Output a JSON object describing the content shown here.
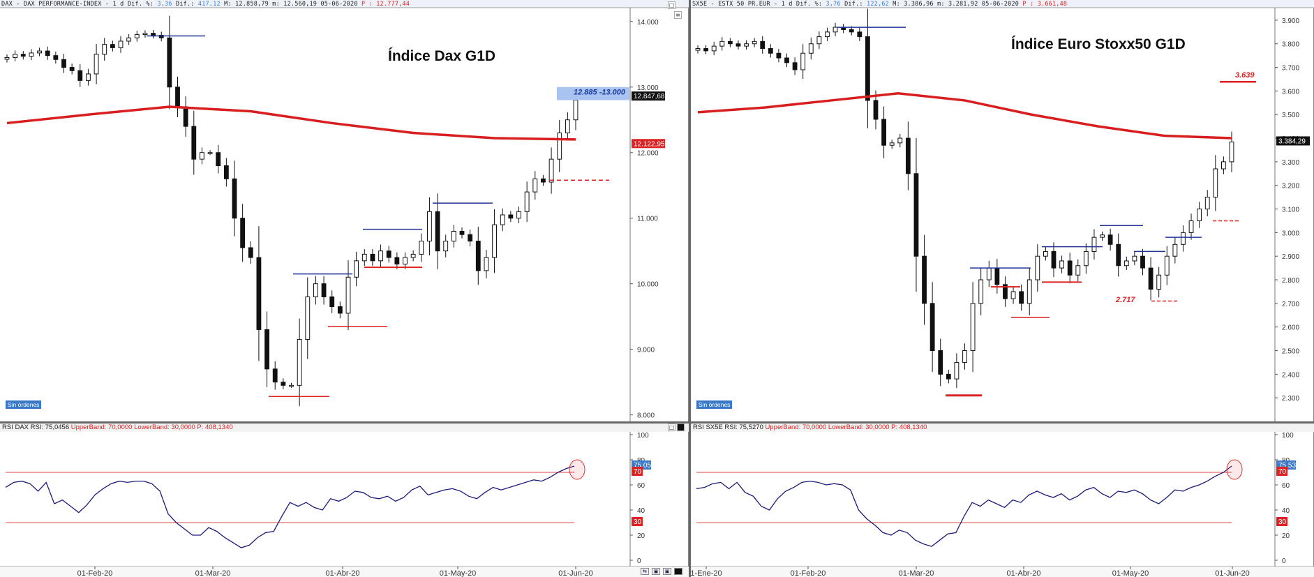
{
  "dax": {
    "header": {
      "symbol": "DAX - DAX PERFORMANCE-INDEX -",
      "interval": "1 d",
      "dif_pct_label": "Dif. %:",
      "dif_pct": "3,36",
      "dif_label": "Dif.:",
      "dif": "417,12",
      "max": "M: 12.858,79",
      "min": "m: 12.560,19",
      "date": "05-06-2020",
      "last": "P : 12.777,44"
    },
    "title": "Índice Dax G1D",
    "orders_badge": "Sin órdenes",
    "rsi_header": {
      "name": "RSI DAX RSI: 75,0456",
      "upper": "UpperBand: 70,0000",
      "lower": "LowerBand: 30,0000",
      "period": "P: 408,1340"
    },
    "price_labels": {
      "current": "12.847,68",
      "ma": "12.122,95",
      "target": "12.885 -13.000"
    },
    "rsi_labels": {
      "current": "75,05",
      "upper": "70",
      "lower": "30"
    }
  },
  "sx5e": {
    "header": {
      "symbol": "SX5E - ESTX 50 PR.EUR -",
      "interval": "1 d",
      "dif_pct_label": "Dif. %:",
      "dif_pct": "3,76",
      "dif_label": "Dif.:",
      "dif": "122,62",
      "max": "M: 3.386,96",
      "min": "m: 3.281,92",
      "date": "05-06-2020",
      "last": "P : 3.661,48"
    },
    "title": "Índice Euro Stoxx50 G1D",
    "orders_badge": "Sin órdenes",
    "rsi_header": {
      "name": "RSI SX5E RSI: 75,5270",
      "upper": "UpperBand: 70,0000",
      "lower": "LowerBand: 30,0000",
      "period": "P: 408,1340"
    },
    "price_labels": {
      "current": "3.384,29",
      "level_high": "3.639",
      "level_low": "2.717"
    },
    "rsi_labels": {
      "current": "75,53",
      "upper": "70",
      "lower": "30"
    }
  },
  "chart_data": [
    {
      "type": "candlestick",
      "title": "Índice Dax G1D",
      "ylim": [
        7900,
        14200
      ],
      "yticks": [
        "8.000",
        "9.000",
        "10.000",
        "11.000",
        "12.000",
        "13.000",
        "14.000"
      ],
      "xticks": [
        "01-Feb-20",
        "01-Mar-20",
        "01-Abr-20",
        "01-May-20",
        "01-Jun-20"
      ],
      "close_series": [
        13450,
        13500,
        13470,
        13520,
        13550,
        13480,
        13420,
        13300,
        13250,
        13100,
        13200,
        13500,
        13650,
        13600,
        13700,
        13750,
        13800,
        13820,
        13790,
        13750,
        13000,
        12700,
        12400,
        11900,
        12000,
        12000,
        11800,
        11600,
        11000,
        10550,
        10400,
        9300,
        8700,
        8500,
        8450,
        8450,
        9150,
        9800,
        10000,
        9800,
        9650,
        9550,
        10100,
        10350,
        10450,
        10350,
        10500,
        10400,
        10300,
        10400,
        10450,
        10650,
        11100,
        10500,
        10650,
        10800,
        10750,
        10650,
        10200,
        10400,
        10900,
        11050,
        11000,
        11100,
        11400,
        11600,
        11550,
        11900,
        12300,
        12500,
        12800
      ],
      "ma_series": [
        12450,
        12580,
        12700,
        12630,
        12450,
        12300,
        12220,
        12200
      ],
      "levels": [
        {
          "label": "12.885 -13.000",
          "value": 12940
        }
      ],
      "annotations": [
        "12.885 -13.000"
      ]
    },
    {
      "type": "line",
      "title": "RSI DAX",
      "ylim": [
        0,
        100
      ],
      "yticks": [
        "0",
        "20",
        "40",
        "60",
        "80",
        "100"
      ],
      "upper_band": 70,
      "lower_band": 30,
      "values": [
        58,
        62,
        63,
        61,
        55,
        62,
        45,
        48,
        43,
        38,
        44,
        52,
        57,
        61,
        63,
        62,
        63,
        63,
        61,
        55,
        37,
        30,
        25,
        20,
        20,
        26,
        23,
        18,
        14,
        10,
        12,
        18,
        22,
        23,
        35,
        46,
        43,
        46,
        42,
        40,
        49,
        47,
        50,
        55,
        54,
        50,
        49,
        51,
        47,
        50,
        56,
        59,
        52,
        54,
        56,
        57,
        55,
        51,
        49,
        54,
        58,
        56,
        58,
        60,
        62,
        64,
        63,
        66,
        70,
        73,
        75
      ]
    },
    {
      "type": "candlestick",
      "title": "Índice Euro Stoxx50 G1D",
      "ylim": [
        2200,
        3950
      ],
      "yticks": [
        "2.300",
        "2.400",
        "2.500",
        "2.600",
        "2.700",
        "2.800",
        "2.900",
        "3.000",
        "3.100",
        "3.200",
        "3.300",
        "3.400",
        "3.500",
        "3.600",
        "3.700",
        "3.800",
        "3.900"
      ],
      "xticks": [
        "1-Ene-20",
        "01-Feb-20",
        "01-Mar-20",
        "01-Abr-20",
        "01-May-20",
        "01-Jun-20"
      ],
      "close_series": [
        3780,
        3770,
        3790,
        3810,
        3800,
        3790,
        3800,
        3810,
        3780,
        3760,
        3740,
        3720,
        3690,
        3760,
        3800,
        3830,
        3850,
        3870,
        3860,
        3850,
        3830,
        3560,
        3480,
        3370,
        3380,
        3400,
        3250,
        2900,
        2700,
        2500,
        2400,
        2380,
        2450,
        2500,
        2700,
        2800,
        2850,
        2780,
        2720,
        2750,
        2700,
        2800,
        2900,
        2920,
        2850,
        2880,
        2820,
        2860,
        2920,
        2980,
        2990,
        2950,
        2860,
        2880,
        2900,
        2850,
        2760,
        2820,
        2900,
        2950,
        3000,
        3050,
        3100,
        3150,
        3270,
        3300,
        3384
      ],
      "ma_series": [
        3510,
        3530,
        3560,
        3590,
        3560,
        3500,
        3450,
        3410,
        3400
      ],
      "levels": [
        {
          "label": "3.639",
          "value": 3639
        },
        {
          "label": "2.717",
          "value": 2717
        }
      ],
      "annotations": [
        "3.639",
        "2.717"
      ]
    },
    {
      "type": "line",
      "title": "RSI SX5E",
      "ylim": [
        0,
        100
      ],
      "yticks": [
        "0",
        "20",
        "40",
        "60",
        "80",
        "100"
      ],
      "upper_band": 70,
      "lower_band": 30,
      "values": [
        57,
        58,
        61,
        62,
        57,
        62,
        54,
        51,
        43,
        40,
        49,
        55,
        58,
        62,
        63,
        62,
        60,
        61,
        60,
        56,
        40,
        33,
        28,
        22,
        20,
        24,
        22,
        16,
        13,
        11,
        16,
        21,
        22,
        35,
        46,
        43,
        48,
        45,
        42,
        48,
        46,
        52,
        55,
        52,
        50,
        53,
        48,
        51,
        56,
        58,
        53,
        50,
        55,
        54,
        56,
        53,
        48,
        45,
        50,
        56,
        55,
        58,
        60,
        63,
        67,
        70,
        75
      ]
    }
  ]
}
